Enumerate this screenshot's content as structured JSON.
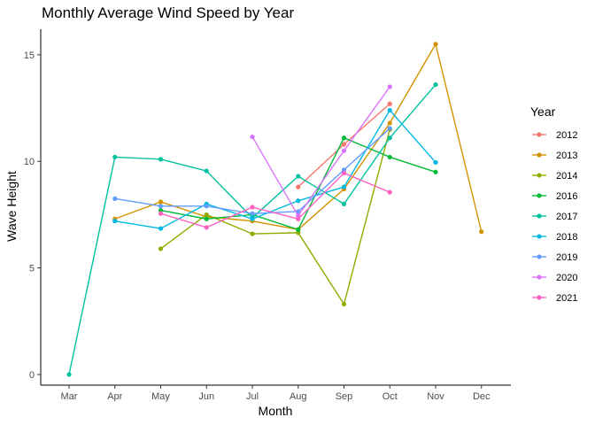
{
  "chart_data": {
    "type": "line",
    "title": "Monthly Average Wind Speed by Year",
    "xlabel": "Month",
    "ylabel": "Wave Height",
    "categories": [
      "Mar",
      "Apr",
      "May",
      "Jun",
      "Jul",
      "Aug",
      "Sep",
      "Oct",
      "Nov",
      "Dec"
    ],
    "ylim": [
      -0.5,
      16.2
    ],
    "yticks": [
      0,
      5,
      10,
      15
    ],
    "grid": false,
    "legend": {
      "title": "Year",
      "position": "right"
    },
    "series": [
      {
        "name": "2012",
        "color": "#F8766D",
        "values": [
          null,
          null,
          null,
          null,
          null,
          8.8,
          10.8,
          12.7,
          null,
          null
        ]
      },
      {
        "name": "2013",
        "color": "#D39200",
        "values": [
          null,
          7.3,
          8.1,
          7.4,
          7.2,
          6.8,
          8.7,
          11.8,
          15.5,
          6.7
        ]
      },
      {
        "name": "2014",
        "color": "#93AA00",
        "values": [
          null,
          null,
          5.9,
          7.5,
          6.6,
          6.65,
          3.3,
          11.5,
          null,
          null
        ]
      },
      {
        "name": "2016",
        "color": "#00BA38",
        "values": [
          null,
          null,
          7.7,
          7.3,
          7.5,
          6.8,
          11.1,
          10.2,
          9.5,
          null
        ]
      },
      {
        "name": "2017",
        "color": "#00C19F",
        "values": [
          0.0,
          10.2,
          10.1,
          9.55,
          7.35,
          9.3,
          8.0,
          11.1,
          13.6,
          null
        ]
      },
      {
        "name": "2018",
        "color": "#00B9E3",
        "values": [
          null,
          7.2,
          6.85,
          8.0,
          7.3,
          8.15,
          8.8,
          12.4,
          9.95,
          null
        ]
      },
      {
        "name": "2019",
        "color": "#619CFF",
        "values": [
          null,
          8.25,
          7.9,
          7.9,
          7.55,
          7.65,
          9.6,
          11.55,
          null,
          null
        ]
      },
      {
        "name": "2020",
        "color": "#DB72FB",
        "values": [
          null,
          null,
          null,
          null,
          11.15,
          7.45,
          10.5,
          13.5,
          null,
          null
        ]
      },
      {
        "name": "2021",
        "color": "#FF61C3",
        "values": [
          null,
          null,
          7.55,
          6.9,
          7.85,
          7.3,
          9.45,
          8.55,
          null,
          null
        ]
      }
    ]
  }
}
